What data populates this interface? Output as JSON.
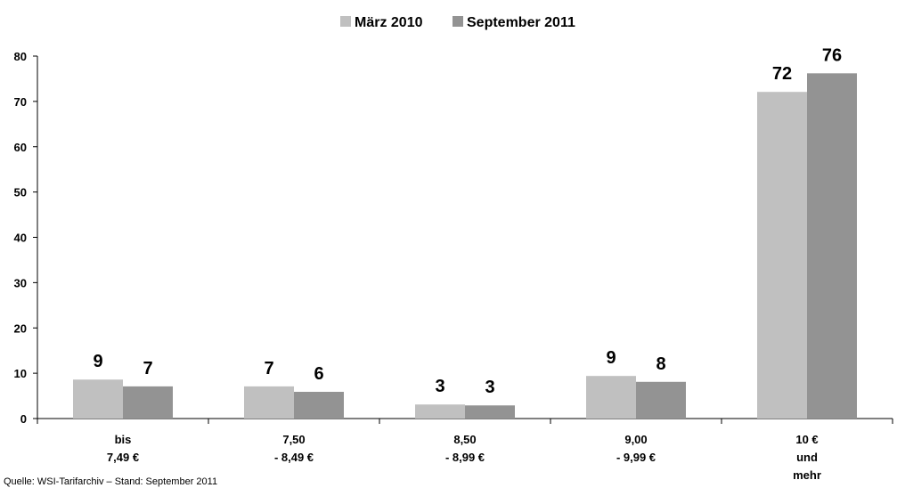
{
  "chart_data": {
    "type": "bar",
    "categories": [
      [
        "bis",
        "7,49 €"
      ],
      [
        "7,50",
        "- 8,49 €"
      ],
      [
        "8,50",
        "- 8,99 €"
      ],
      [
        "9,00",
        "- 9,99 €"
      ],
      [
        "10 €",
        "und",
        "mehr"
      ]
    ],
    "series": [
      {
        "name": "März 2010",
        "color": "#c0c0c0",
        "values": [
          8.6,
          7.1,
          3.1,
          9.4,
          72.1
        ],
        "value_labels": [
          "9",
          "7",
          "3",
          "9",
          "72"
        ]
      },
      {
        "name": "September 2011",
        "color": "#939393",
        "values": [
          7.1,
          5.9,
          2.9,
          8.1,
          76.2
        ],
        "value_labels": [
          "7",
          "6",
          "3",
          "8",
          "76"
        ]
      }
    ],
    "ylim": [
      0,
      80
    ],
    "yticks": [
      0,
      10,
      20,
      30,
      40,
      50,
      60,
      70,
      80
    ],
    "legend": "top",
    "source": "Quelle: WSI-Tarifarchiv – Stand: September 2011"
  }
}
